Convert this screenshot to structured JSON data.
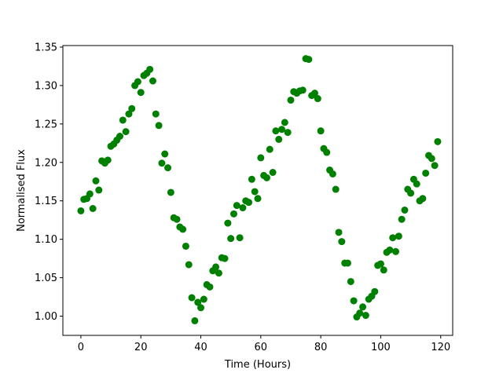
{
  "chart_data": {
    "type": "scatter",
    "title": "",
    "xlabel": "Time (Hours)",
    "ylabel": "Normalised Flux",
    "xlim": [
      -6,
      124
    ],
    "ylim": [
      0.975,
      1.352
    ],
    "xticks": [
      0,
      20,
      40,
      60,
      80,
      100,
      120
    ],
    "yticks": [
      1.0,
      1.05,
      1.1,
      1.15,
      1.2,
      1.25,
      1.3,
      1.35
    ],
    "ytick_labels": [
      "1.00",
      "1.05",
      "1.10",
      "1.15",
      "1.20",
      "1.25",
      "1.30",
      "1.35"
    ],
    "grid": false,
    "marker_color": "#008000",
    "x": [
      0,
      1,
      2,
      3,
      4,
      5,
      6,
      7,
      8,
      9,
      10,
      11,
      12,
      13,
      14,
      15,
      16,
      17,
      18,
      19,
      20,
      21,
      22,
      23,
      24,
      25,
      26,
      27,
      28,
      29,
      30,
      31,
      32,
      33,
      34,
      35,
      36,
      37,
      38,
      39,
      40,
      41,
      42,
      43,
      44,
      45,
      46,
      47,
      48,
      49,
      50,
      51,
      52,
      53,
      54,
      55,
      56,
      57,
      58,
      59,
      60,
      61,
      62,
      63,
      64,
      65,
      66,
      67,
      68,
      69,
      70,
      71,
      72,
      73,
      74,
      75,
      76,
      77,
      78,
      79,
      80,
      81,
      82,
      83,
      84,
      85,
      86,
      87,
      88,
      89,
      90,
      91,
      92,
      93,
      94,
      95,
      96,
      97,
      98,
      99,
      100,
      101,
      102,
      103,
      104,
      105,
      106,
      107,
      108,
      109,
      110,
      111,
      112,
      113,
      114,
      115,
      116,
      117,
      118,
      119
    ],
    "y": [
      1.137,
      1.152,
      1.153,
      1.159,
      1.14,
      1.176,
      1.164,
      1.202,
      1.199,
      1.203,
      1.221,
      1.224,
      1.229,
      1.234,
      1.255,
      1.24,
      1.263,
      1.27,
      1.3,
      1.305,
      1.291,
      1.313,
      1.316,
      1.321,
      1.306,
      1.263,
      1.248,
      1.199,
      1.211,
      1.193,
      1.161,
      1.128,
      1.126,
      1.116,
      1.113,
      1.091,
      1.067,
      1.024,
      0.994,
      1.018,
      1.011,
      1.022,
      1.041,
      1.038,
      1.059,
      1.064,
      1.056,
      1.076,
      1.075,
      1.121,
      1.101,
      1.133,
      1.144,
      1.102,
      1.141,
      1.15,
      1.148,
      1.178,
      1.162,
      1.153,
      1.206,
      1.183,
      1.18,
      1.217,
      1.187,
      1.241,
      1.23,
      1.243,
      1.252,
      1.239,
      1.281,
      1.292,
      1.29,
      1.293,
      1.294,
      1.335,
      1.334,
      1.287,
      1.29,
      1.283,
      1.241,
      1.218,
      1.213,
      1.19,
      1.185,
      1.165,
      1.109,
      1.097,
      1.069,
      1.069,
      1.045,
      1.02,
      0.999,
      1.004,
      1.012,
      1.001,
      1.022,
      1.026,
      1.032,
      1.066,
      1.068,
      1.06,
      1.083,
      1.086,
      1.102,
      1.084,
      1.104,
      1.126,
      1.138,
      1.165,
      1.16,
      1.178,
      1.172,
      1.15,
      1.153,
      1.186,
      1.209,
      1.205,
      1.196,
      1.227
    ]
  }
}
